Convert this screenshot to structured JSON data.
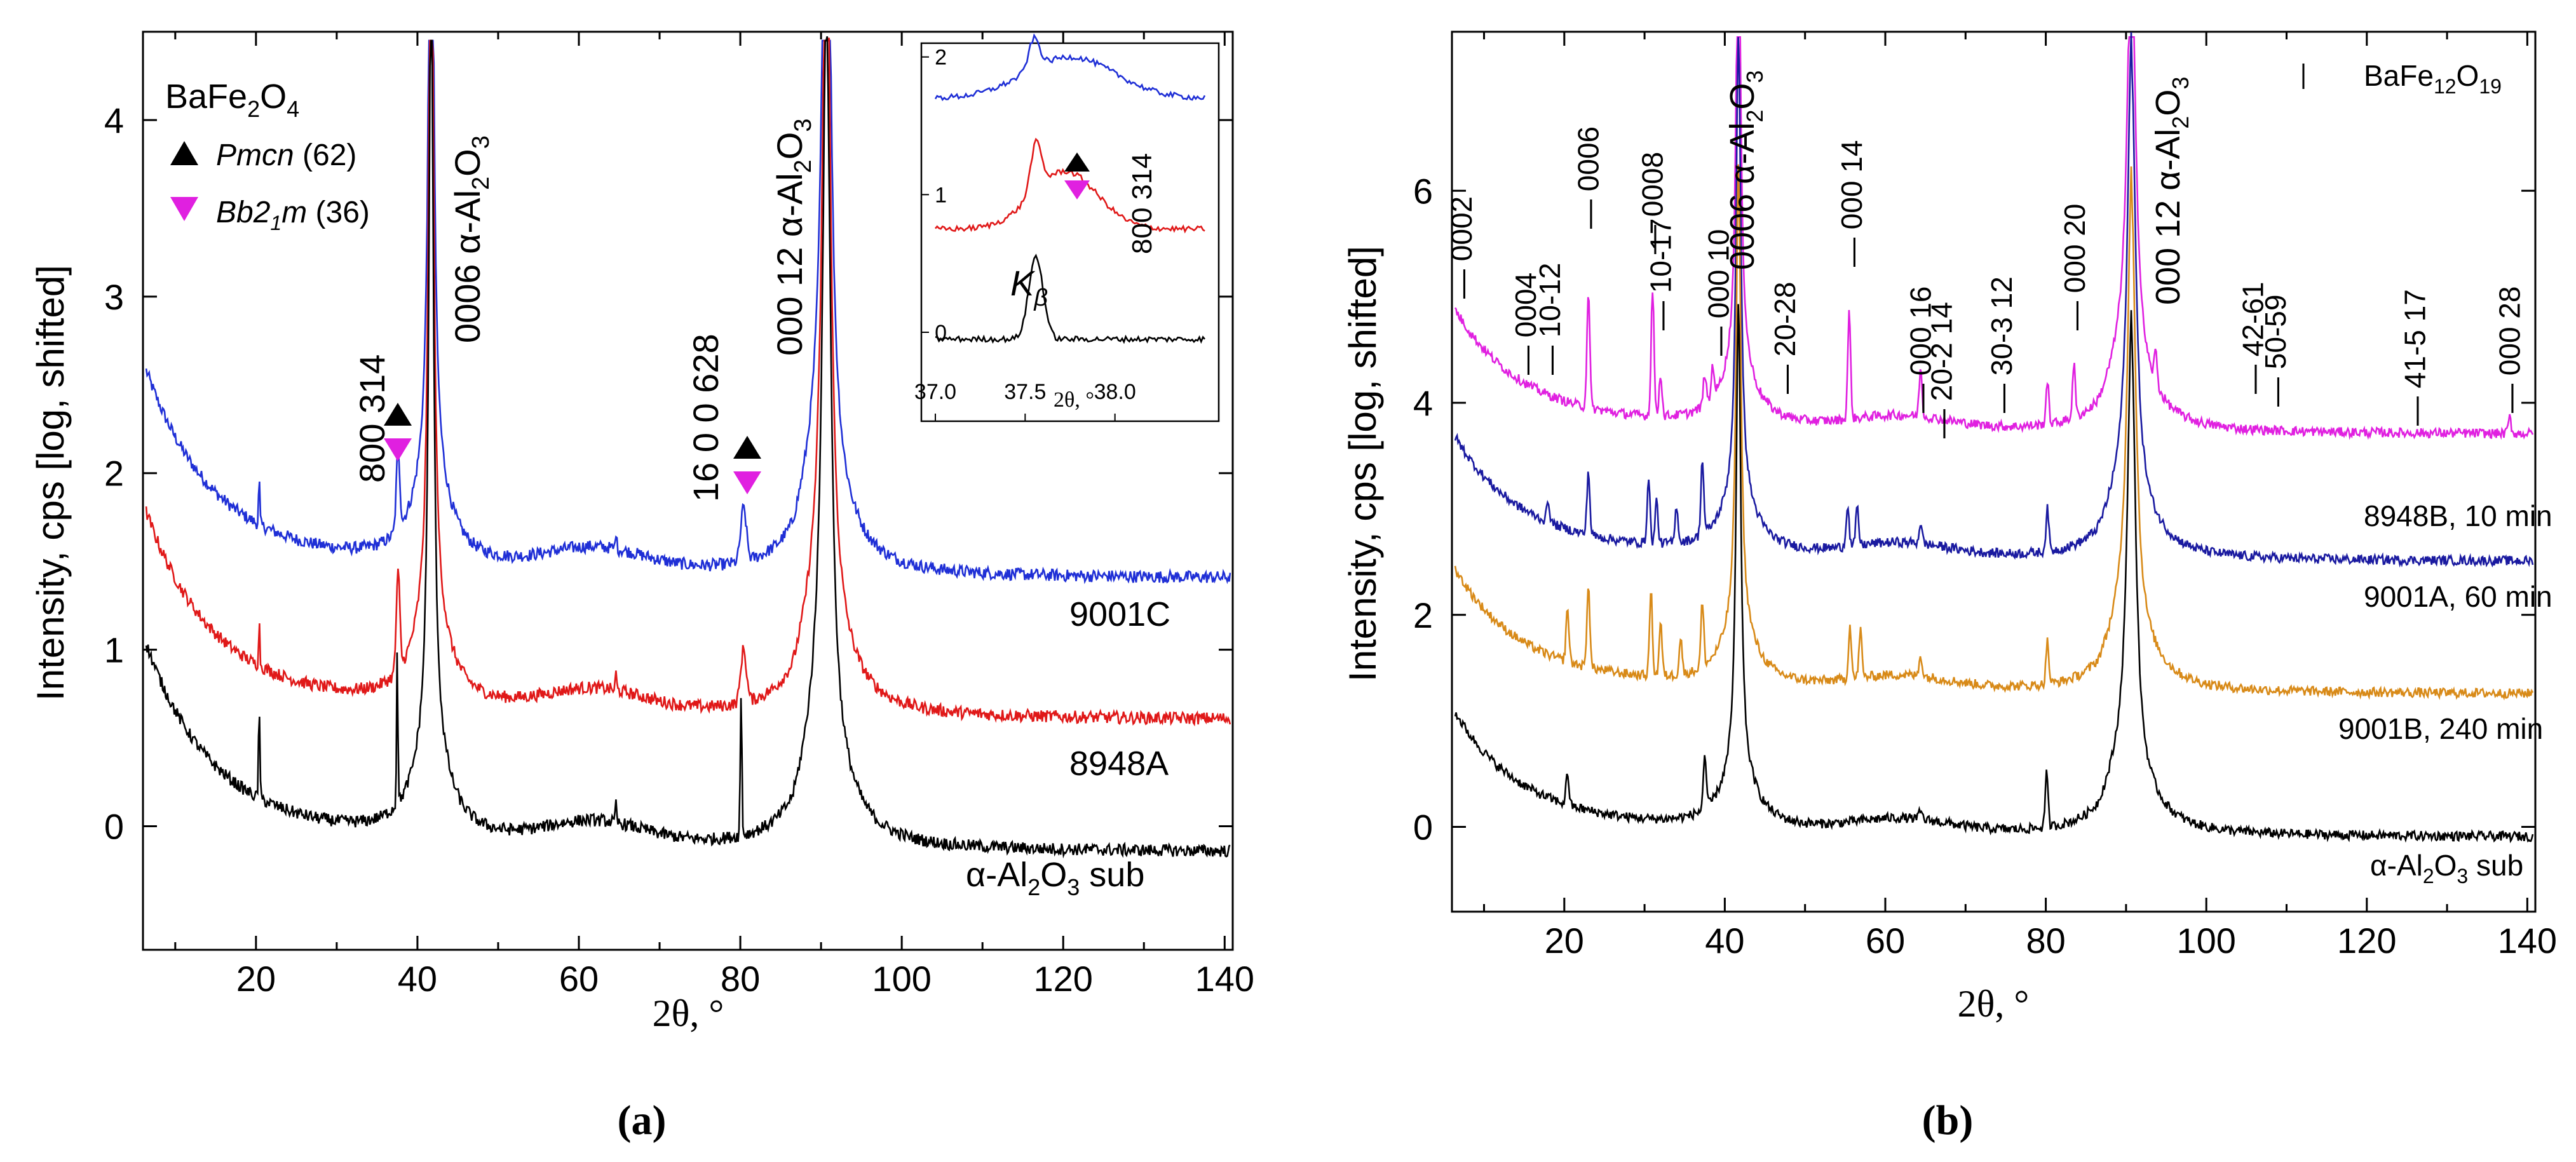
{
  "colors": {
    "black": "#000000",
    "blue": "#1f2fd6",
    "red": "#e01818",
    "magenta": "#e020e0",
    "navy": "#1a1aa0",
    "orange": "#d88a18"
  },
  "chart_data": [
    {
      "id": "a",
      "type": "line",
      "panel_label": "(a)",
      "xlabel": "2θ, °",
      "ylabel": "Intensity, cps [log, shifted]",
      "xlim": [
        6,
        141
      ],
      "ylim": [
        -0.7,
        4.5
      ],
      "x_ticks": [
        "20",
        "40",
        "60",
        "80",
        "100",
        "120",
        "140"
      ],
      "y_ticks": [
        "0",
        "1",
        "2",
        "3",
        "4"
      ],
      "series": [
        {
          "name": "9001C",
          "color": "#1f2fd6",
          "offset": 1.4,
          "label_x": 122,
          "label_y": 1.05
        },
        {
          "name": "8948A",
          "color": "#e01818",
          "offset": 0.6,
          "label_x": 122,
          "label_y": 0.3
        },
        {
          "name": "α-Al2O3 sub",
          "color": "#000000",
          "offset": -0.15,
          "label_x": 113,
          "label_y": -0.45
        }
      ],
      "legend": {
        "title_base": "BaFe",
        "title_sub1": "2",
        "title_mid": "O",
        "title_sub2": "4",
        "entries": [
          {
            "symbol": "triangle-up",
            "name_italic": "Pmcn",
            "name_rest": " (62)"
          },
          {
            "symbol": "triangle-down",
            "name_italic": "Bb2",
            "name_sub": "1",
            "name_italic2": "m",
            "name_rest": " (36)"
          }
        ]
      },
      "annotations": {
        "peak_800_314": "800  314",
        "peak_0006_prefix": "0006 α-Al",
        "peak_0006_sub1": "2",
        "peak_0006_mid": "O",
        "peak_0006_sub2": "3",
        "peak_1600_628": "16 0 0  628",
        "peak_00012_prefix": "000 12 α-Al",
        "peak_00012_sub1": "2",
        "peak_00012_mid": "O",
        "peak_00012_sub2": "3"
      },
      "inset": {
        "xlim": [
          37.0,
          38.5
        ],
        "ylim": [
          -0.3,
          2.1
        ],
        "x_ticks": [
          "37.0",
          "37.5",
          "38.0"
        ],
        "y_ticks": [
          "0",
          "1",
          "2"
        ],
        "xlabel": "2θ, °",
        "kbeta_main": "K",
        "kbeta_sub": "β",
        "peak_label": "800  314"
      }
    },
    {
      "id": "b",
      "type": "line",
      "panel_label": "(b)",
      "xlabel": "2θ, °",
      "ylabel": "Intensity, cps [log, shifted]",
      "xlim": [
        6,
        141
      ],
      "ylim": [
        -0.8,
        7.5
      ],
      "x_ticks": [
        "20",
        "40",
        "60",
        "80",
        "100",
        "120",
        "140"
      ],
      "y_ticks": [
        "0",
        "2",
        "4",
        "6"
      ],
      "series": [
        {
          "name": "8948B, 10 min",
          "color": "#e020e0",
          "offset": 3.7
        },
        {
          "name": "9001A, 60 min",
          "color": "#1a1aa0",
          "offset": 2.5
        },
        {
          "name": "9001B, 240 min",
          "color": "#d88a18",
          "offset": 1.25
        },
        {
          "name": "α-Al2O3 sub",
          "color": "#000000",
          "offset": -0.1
        }
      ],
      "legend_label": "BaFe12O19",
      "legend_base": "BaFe",
      "legend_sub1": "12",
      "legend_mid": "O",
      "legend_sub2": "19",
      "reflections": [
        "0002",
        "0004",
        "10-12",
        "0006",
        "0008",
        "10-17",
        "000 10",
        "20-28",
        "000 14",
        "000 16",
        "20-2 14",
        "30-3 12",
        "000 20",
        "42-61",
        "50-59",
        "41-5 17",
        "000 28"
      ],
      "annotations": {
        "peak_0006_prefix": "0006 α-Al",
        "peak_0006_sub1": "2",
        "peak_0006_mid": "O",
        "peak_0006_sub2": "3",
        "peak_00012_prefix": "000 12 α-Al",
        "peak_00012_sub1": "2",
        "peak_00012_mid": "O",
        "peak_00012_sub2": "3",
        "sub_prefix": "α-Al",
        "sub_sub1": "2",
        "sub_mid": "O",
        "sub_sub2": "3",
        "sub_rest": " sub"
      }
    }
  ]
}
